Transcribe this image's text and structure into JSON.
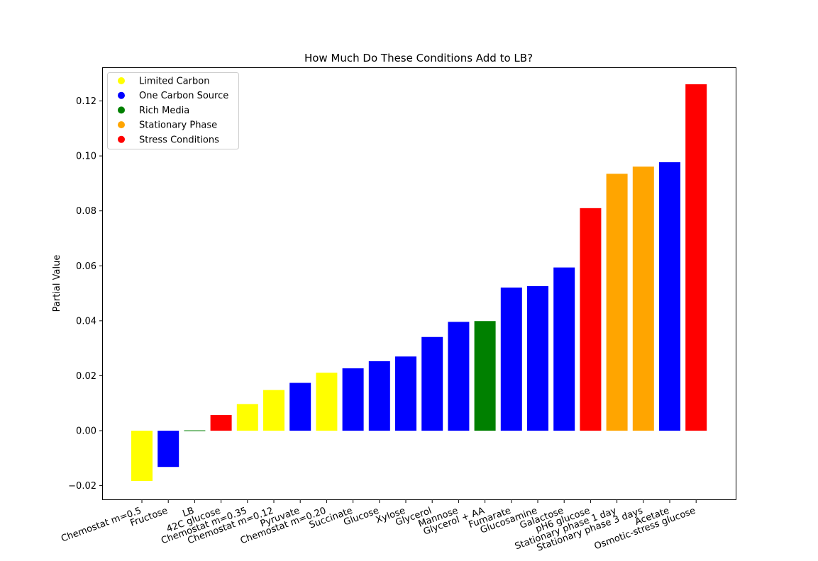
{
  "chart_data": {
    "type": "bar",
    "title": "How Much Do These Conditions Add to LB?",
    "xlabel": "",
    "ylabel": "Partial Value",
    "ylim": [
      -0.025,
      0.132
    ],
    "yticks": [
      -0.02,
      0.0,
      0.02,
      0.04,
      0.06,
      0.08,
      0.1,
      0.12
    ],
    "ytick_labels": [
      "−0.02",
      "0.00",
      "0.02",
      "0.04",
      "0.06",
      "0.08",
      "0.10",
      "0.12"
    ],
    "grid": false,
    "legend_position": "top-left",
    "legend": [
      {
        "label": "Limited Carbon",
        "color": "#ffff00"
      },
      {
        "label": "One Carbon Source",
        "color": "#0000ff"
      },
      {
        "label": "Rich Media",
        "color": "#008000"
      },
      {
        "label": "Stationary Phase",
        "color": "#ffa500"
      },
      {
        "label": "Stress Conditions",
        "color": "#ff0000"
      }
    ],
    "categories": [
      "Chemostat m=0.5",
      "Fructose",
      "LB",
      "42C glucose",
      "Chemostat m=0.35",
      "Chemostat m=0.12",
      "Pyruvate",
      "Chemostat m=0.20",
      "Succinate",
      "Glucose",
      "Xylose",
      "Glycerol",
      "Mannose",
      "Glycerol + AA",
      "Fumarate",
      "Glucosamine",
      "Galactose",
      "pH6 glucose",
      "Stationary phase 1 day",
      "Stationary phase 3 days",
      "Acetate",
      "Osmotic-stress glucose"
    ],
    "values": [
      -0.0183,
      -0.0132,
      0.0002,
      0.0057,
      0.0097,
      0.0148,
      0.0174,
      0.0211,
      0.0227,
      0.0253,
      0.027,
      0.0341,
      0.0396,
      0.0399,
      0.0521,
      0.0526,
      0.0594,
      0.081,
      0.0935,
      0.0961,
      0.0977,
      0.1261
    ],
    "colors": [
      "#ffff00",
      "#0000ff",
      "#008000",
      "#ff0000",
      "#ffff00",
      "#ffff00",
      "#0000ff",
      "#ffff00",
      "#0000ff",
      "#0000ff",
      "#0000ff",
      "#0000ff",
      "#0000ff",
      "#008000",
      "#0000ff",
      "#0000ff",
      "#0000ff",
      "#ff0000",
      "#ffa500",
      "#ffa500",
      "#0000ff",
      "#ff0000"
    ]
  }
}
